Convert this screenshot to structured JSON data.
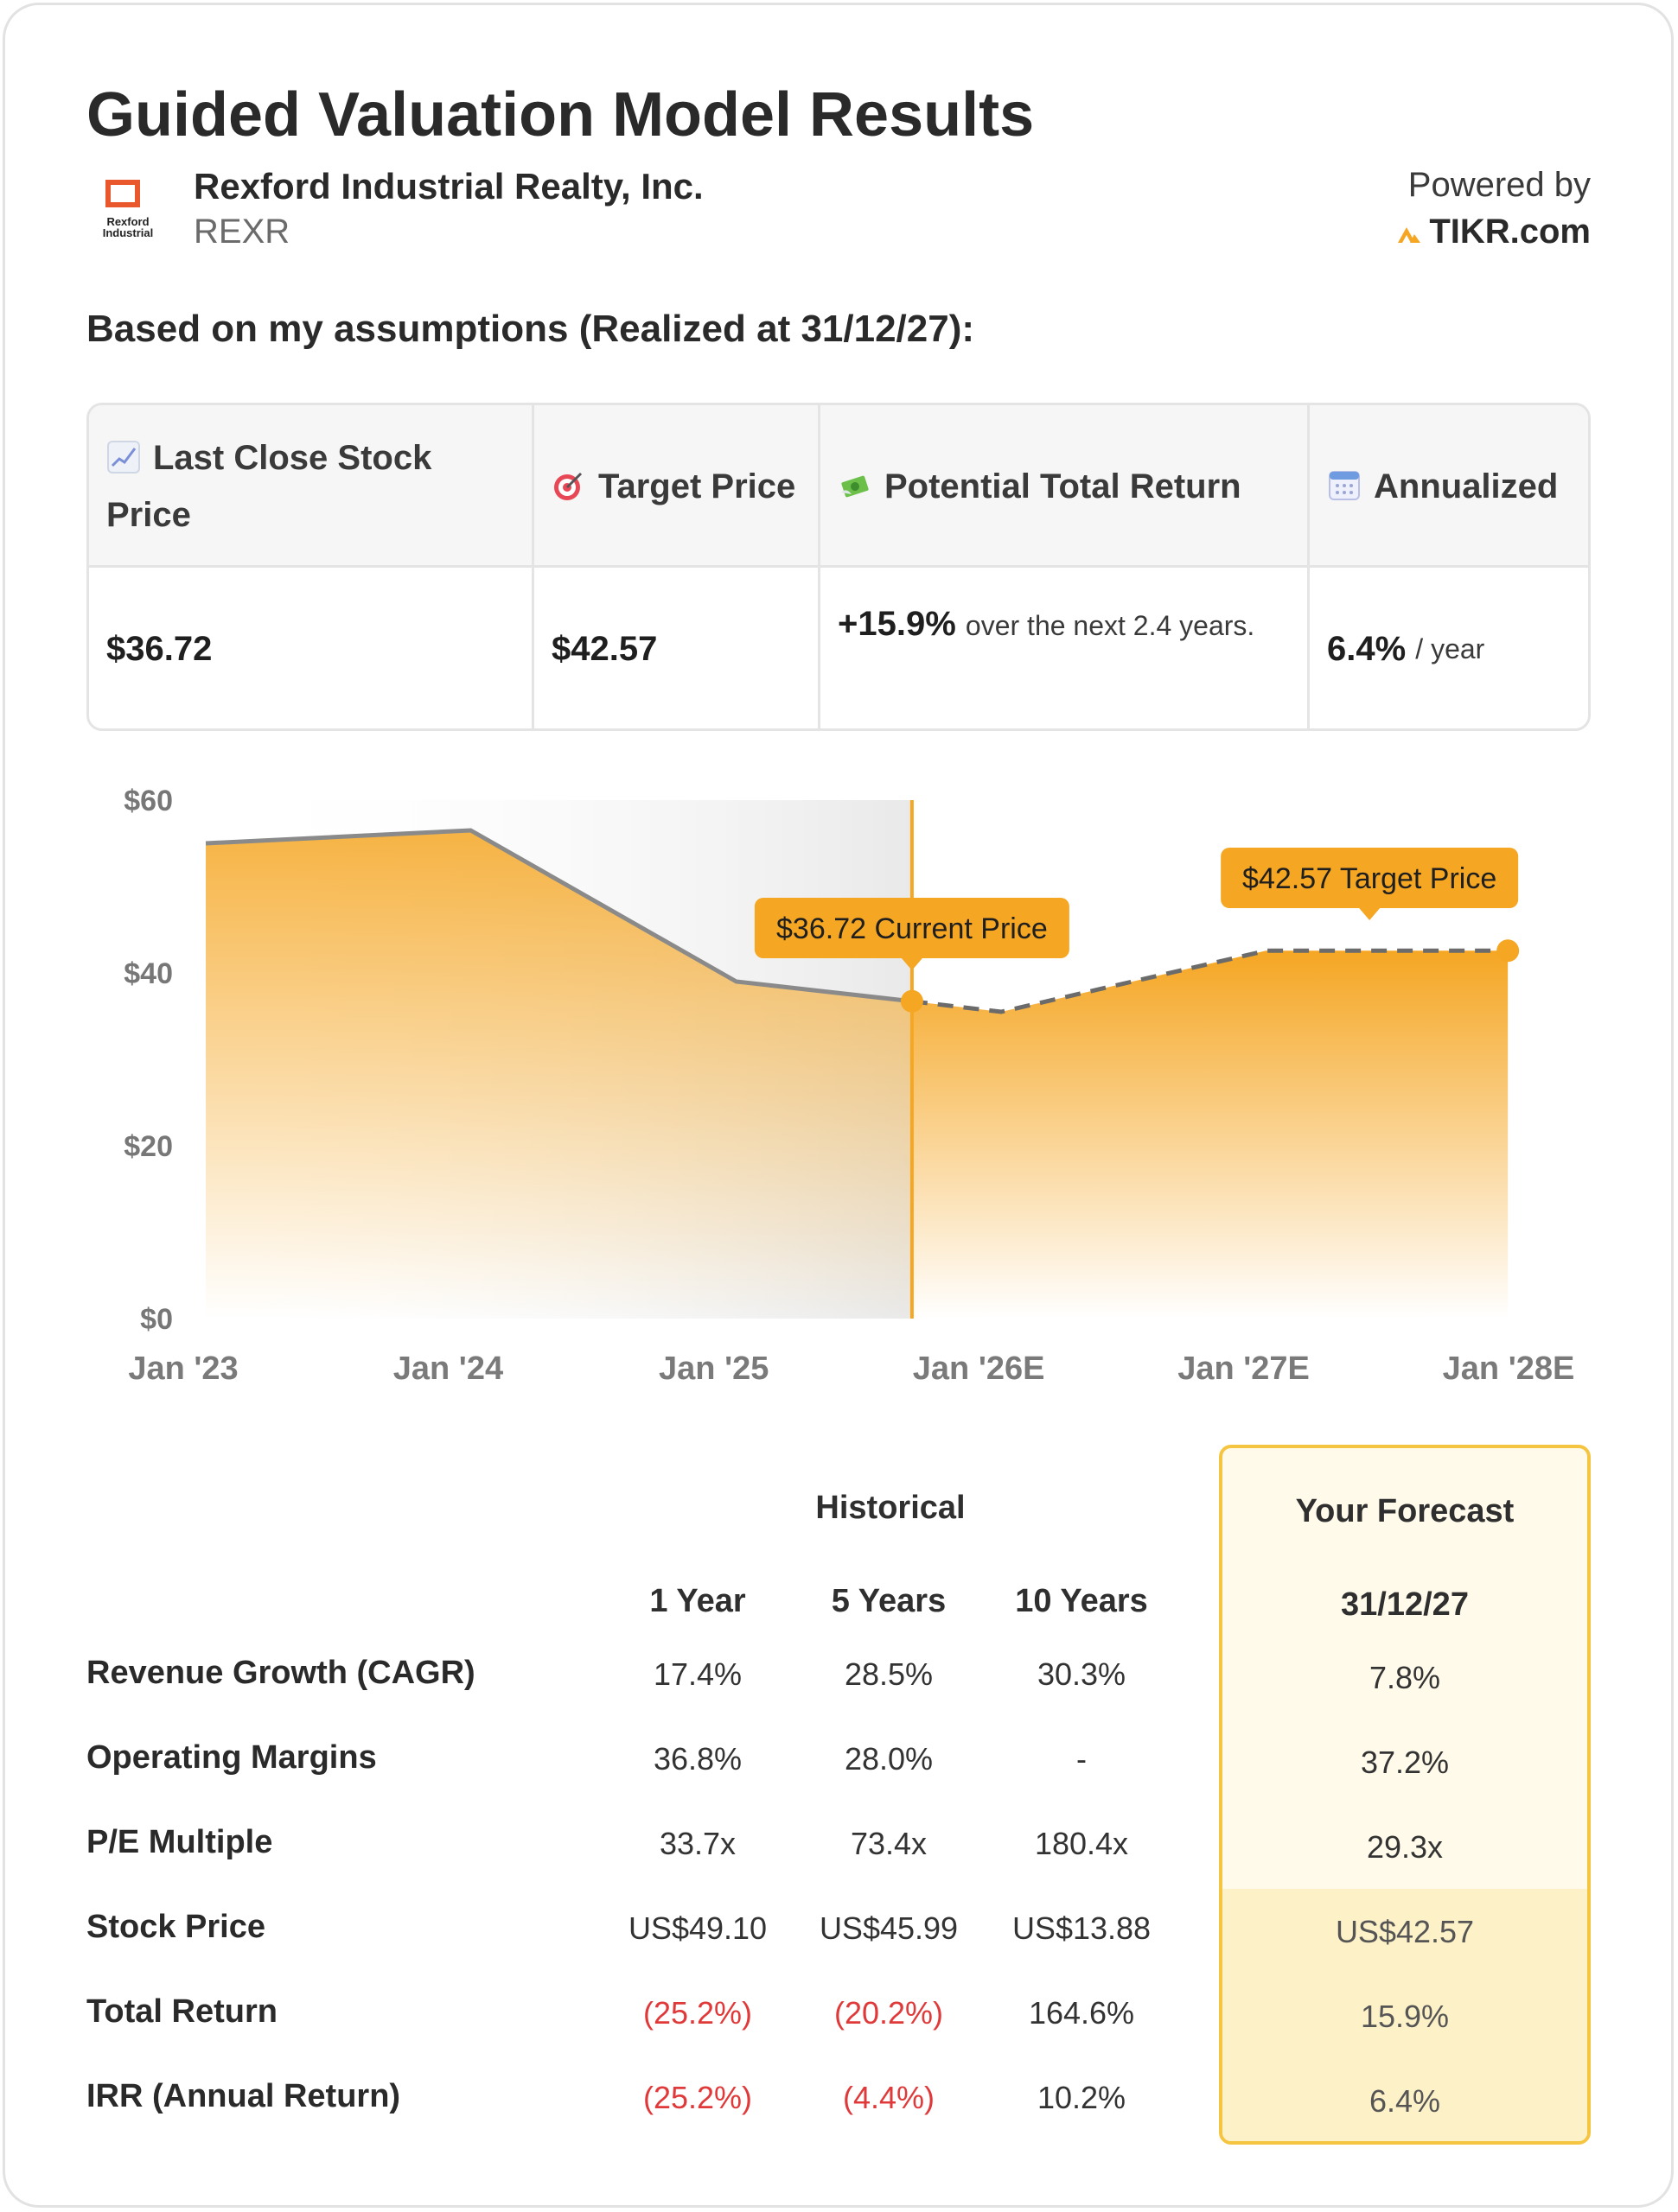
{
  "header": {
    "title": "Guided Valuation Model Results",
    "company_name": "Rexford Industrial Realty, Inc.",
    "ticker": "REXR",
    "logo_text": "Rexford Industrial",
    "powered_by": "Powered by",
    "brand": "TIKR.com"
  },
  "assumptions_heading": "Based on my assumptions (Realized at 31/12/27):",
  "summary": {
    "columns": [
      {
        "icon": "chart-increasing-icon",
        "label": "Last Close Stock Price",
        "value": "$36.72"
      },
      {
        "icon": "target-icon",
        "label": "Target Price",
        "value": "$42.57"
      },
      {
        "icon": "money-with-wings-icon",
        "label": "Potential Total Return",
        "value": "+15.9%",
        "suffix": "over the next 2.4 years."
      },
      {
        "icon": "calendar-icon",
        "label": "Annualized",
        "value": "6.4%",
        "suffix": "/ year"
      }
    ]
  },
  "chart_data": {
    "type": "area",
    "x": [
      "Jan '23",
      "Jan '24",
      "Jan '25",
      "Jan '26E",
      "Jan '27E",
      "Jan '28E"
    ],
    "xlim": [
      "2023-01-01",
      "2028-01-01"
    ],
    "ylim": [
      0,
      60
    ],
    "yticks": [
      "$0",
      "$20",
      "$40",
      "$60"
    ],
    "series": [
      {
        "segment": "historical",
        "points": [
          [
            "2023-02-01",
            55
          ],
          [
            "2024-02-01",
            56.5
          ],
          [
            "2025-02-01",
            39
          ],
          [
            "2025-10-01",
            36.72
          ]
        ]
      },
      {
        "segment": "forecast",
        "points": [
          [
            "2025-10-01",
            36.72
          ],
          [
            "2026-02-01",
            35.5
          ],
          [
            "2027-02-01",
            42.57
          ],
          [
            "2027-12-31",
            42.57
          ]
        ]
      }
    ],
    "current_label": "$36.72 Current Price",
    "target_label": "$42.57 Target Price",
    "colors": {
      "area": "#f5a623",
      "line": "#777777",
      "marker": "#f5a623",
      "shade": "#f2f2f2"
    }
  },
  "metrics": {
    "historical_label": "Historical",
    "forecast_label": "Your Forecast",
    "period_headers": [
      "1 Year",
      "5 Years",
      "10 Years"
    ],
    "forecast_date": "31/12/27",
    "rows": [
      {
        "label": "Revenue Growth (CAGR)",
        "values": [
          "17.4%",
          "28.5%",
          "30.3%"
        ],
        "negative": [
          false,
          false,
          false
        ],
        "forecast": "7.8%"
      },
      {
        "label": "Operating Margins",
        "values": [
          "36.8%",
          "28.0%",
          "-"
        ],
        "negative": [
          false,
          false,
          false
        ],
        "forecast": "37.2%"
      },
      {
        "label": "P/E Multiple",
        "values": [
          "33.7x",
          "73.4x",
          "180.4x"
        ],
        "negative": [
          false,
          false,
          false
        ],
        "forecast": "29.3x"
      },
      {
        "label": "Stock Price",
        "values": [
          "US$49.10",
          "US$45.99",
          "US$13.88"
        ],
        "negative": [
          false,
          false,
          false
        ],
        "forecast": "US$42.57"
      },
      {
        "label": "Total Return",
        "values": [
          "(25.2%)",
          "(20.2%)",
          "164.6%"
        ],
        "negative": [
          true,
          true,
          false
        ],
        "forecast": "15.9%"
      },
      {
        "label": "IRR (Annual Return)",
        "values": [
          "(25.2%)",
          "(4.4%)",
          "10.2%"
        ],
        "negative": [
          true,
          true,
          false
        ],
        "forecast": "6.4%"
      }
    ]
  }
}
